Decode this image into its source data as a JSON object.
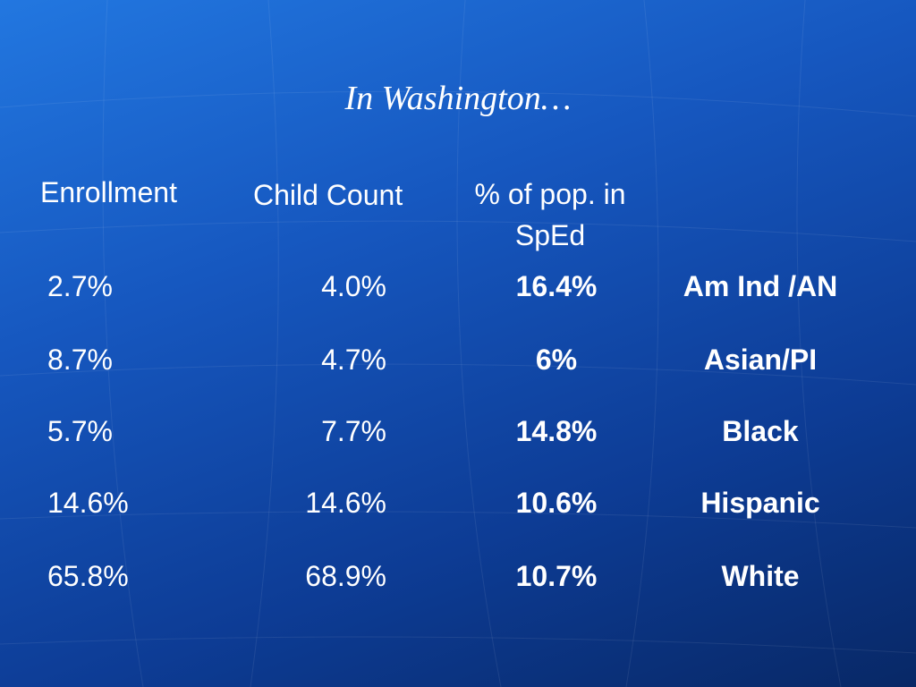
{
  "title": "In Washington…",
  "table": {
    "headers": [
      "Enrollment",
      "Child Count",
      "% of pop. in SpEd"
    ],
    "rows": [
      [
        "2.7%",
        "4.0%",
        "16.4%",
        "Am Ind /AN"
      ],
      [
        "8.7%",
        "4.7%",
        "6%",
        "Asian/PI"
      ],
      [
        "5.7%",
        "7.7%",
        "14.8%",
        "Black"
      ],
      [
        "14.6%",
        "14.6%",
        "10.6%",
        "Hispanic"
      ],
      [
        "65.8%",
        "68.9%",
        "10.7%",
        "White"
      ]
    ]
  }
}
